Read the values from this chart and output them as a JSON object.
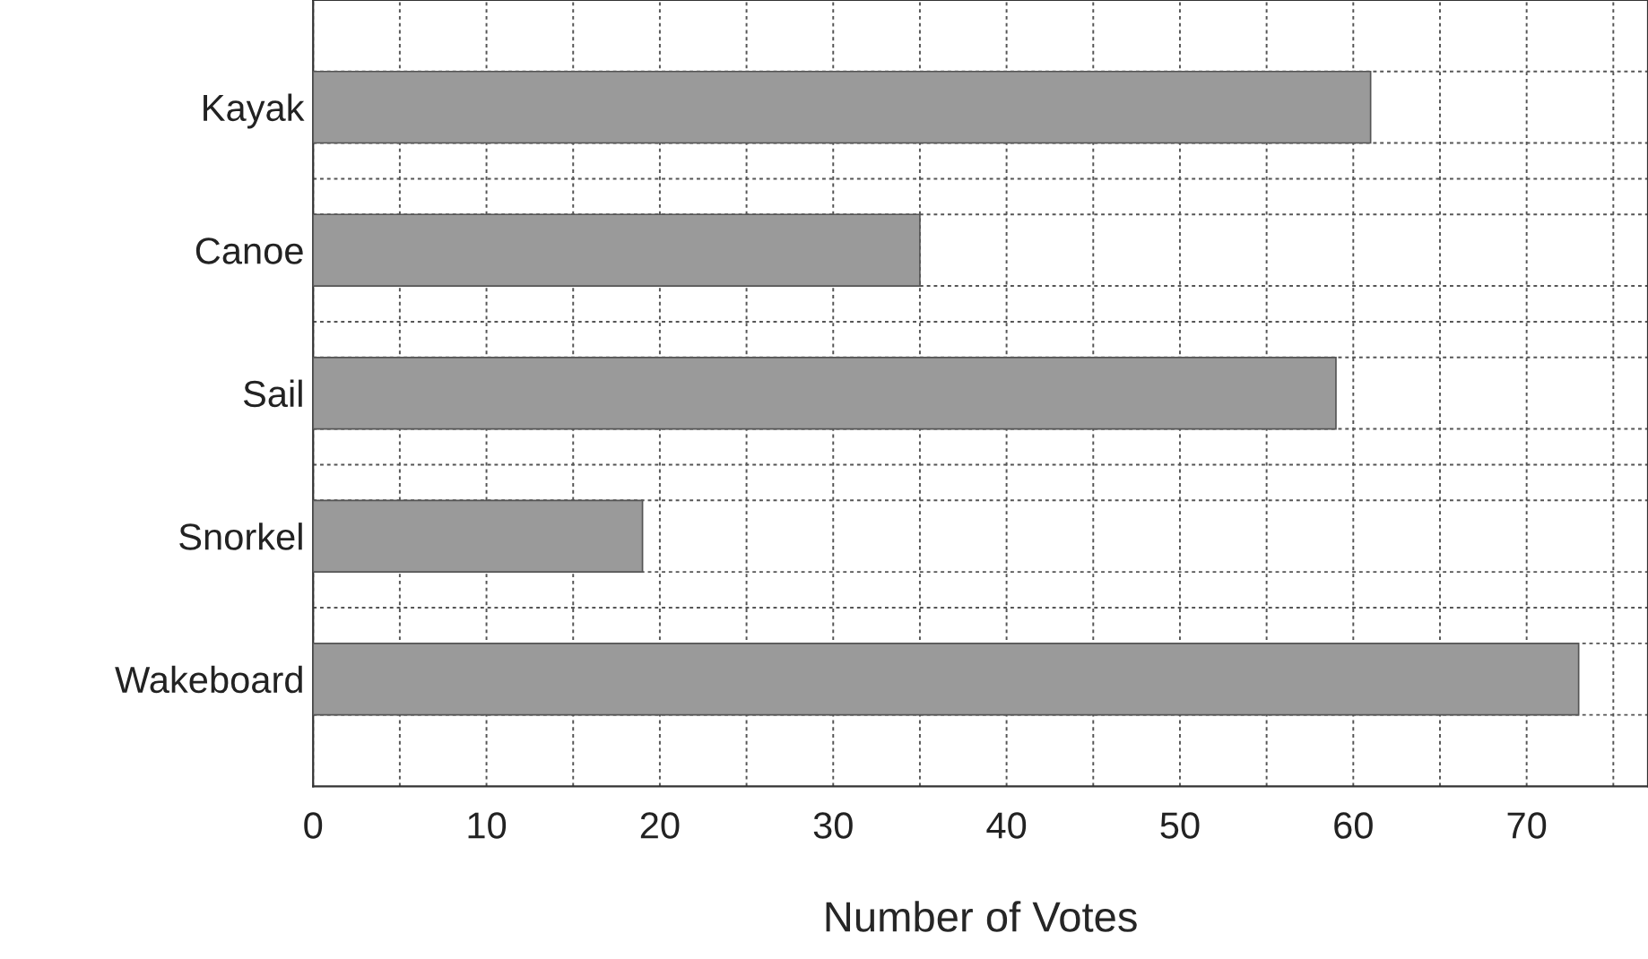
{
  "chart_data": {
    "type": "bar",
    "orientation": "horizontal",
    "xlabel": "Number of Votes",
    "categories": [
      "Kayak",
      "Canoe",
      "Sail",
      "Snorkel",
      "Wakeboard"
    ],
    "values": [
      61,
      35,
      59,
      19,
      73
    ],
    "color": "#9a9a9a",
    "xlim": [
      0,
      77
    ],
    "xticks": [
      0,
      {
        "value": 5,
        "label": null
      },
      10,
      {
        "value": 15,
        "label": null
      },
      20,
      {
        "value": 25,
        "label": null
      },
      30,
      {
        "value": 35,
        "label": null
      },
      40,
      {
        "value": 45,
        "label": null
      },
      50,
      {
        "value": 55,
        "label": null
      },
      60,
      {
        "value": 65,
        "label": null
      },
      70,
      {
        "value": 75,
        "label": null
      }
    ],
    "grid": true
  }
}
